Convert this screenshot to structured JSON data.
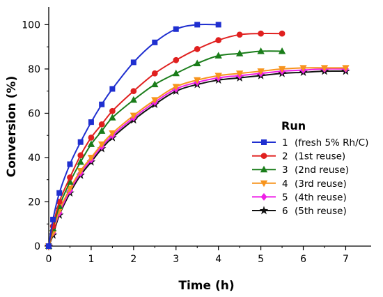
{
  "chart_data": {
    "type": "line",
    "xlabel": "Time (h)",
    "ylabel": "Conversion (%)",
    "xlim": [
      0,
      7.6
    ],
    "ylim": [
      0,
      108
    ],
    "xticks": [
      "0",
      "1",
      "2",
      "3",
      "4",
      "5",
      "6",
      "7"
    ],
    "yticks": [
      "0",
      "20",
      "40",
      "60",
      "80",
      "100"
    ],
    "grid": false,
    "legend": {
      "title": "Run",
      "position": "right-center"
    },
    "series": [
      {
        "name": "1",
        "note": "(fresh 5% Rh/C)",
        "color": "#1f2fd0",
        "marker": "square",
        "x": [
          0,
          0.1,
          0.25,
          0.5,
          0.75,
          1.0,
          1.25,
          1.5,
          2.0,
          2.5,
          3.0,
          3.5,
          4.0
        ],
        "y": [
          0,
          12,
          24,
          37,
          47,
          56,
          64,
          71,
          83,
          92,
          98,
          100,
          100
        ]
      },
      {
        "name": "2",
        "note": "(1st reuse)",
        "color": "#e0201f",
        "marker": "circle",
        "x": [
          0,
          0.1,
          0.25,
          0.5,
          0.75,
          1.0,
          1.25,
          1.5,
          2.0,
          2.5,
          3.0,
          3.5,
          4.0,
          4.5,
          5.0,
          5.5
        ],
        "y": [
          0,
          9,
          20,
          31,
          41,
          49,
          55,
          61,
          70,
          78,
          84,
          89,
          93,
          95.5,
          96,
          96
        ]
      },
      {
        "name": "3",
        "note": "(2nd reuse)",
        "color": "#1a7d1a",
        "marker": "triangle-up",
        "x": [
          0,
          0.1,
          0.25,
          0.5,
          0.75,
          1.0,
          1.25,
          1.5,
          2.0,
          2.5,
          3.0,
          3.5,
          4.0,
          4.5,
          5.0,
          5.5
        ],
        "y": [
          0,
          8,
          18,
          29,
          38,
          46,
          52,
          58,
          66,
          73,
          78,
          82.5,
          86,
          87,
          88,
          88
        ]
      },
      {
        "name": "4",
        "note": "(3rd reuse)",
        "color": "#f7941d",
        "marker": "triangle-down",
        "x": [
          0,
          0.1,
          0.25,
          0.5,
          0.75,
          1.0,
          1.25,
          1.5,
          2.0,
          2.5,
          3.0,
          3.5,
          4.0,
          4.5,
          5.0,
          5.5,
          6.0,
          6.5,
          7.0
        ],
        "y": [
          0,
          6,
          16,
          26,
          34,
          40,
          46,
          51,
          59,
          66,
          72,
          75,
          77,
          78,
          79,
          80,
          80.5,
          80.5,
          80.5
        ]
      },
      {
        "name": "5",
        "note": "(4th reuse)",
        "color": "#ee1fe6",
        "marker": "diamond",
        "x": [
          0,
          0.1,
          0.25,
          0.5,
          0.75,
          1.0,
          1.25,
          1.5,
          2.0,
          2.5,
          3.0,
          3.5,
          4.0,
          4.5,
          5.0,
          5.5,
          6.0,
          6.5,
          7.0
        ],
        "y": [
          0,
          6,
          15,
          25,
          33,
          39,
          45,
          50,
          58,
          65,
          71,
          74,
          76,
          77,
          78,
          79,
          79.5,
          80,
          80
        ]
      },
      {
        "name": "6",
        "note": "(5th reuse)",
        "color": "#111111",
        "marker": "star",
        "x": [
          0,
          0.1,
          0.25,
          0.5,
          0.75,
          1.0,
          1.25,
          1.5,
          2.0,
          2.5,
          3.0,
          3.5,
          4.0,
          4.5,
          5.0,
          5.5,
          6.0,
          6.5,
          7.0
        ],
        "y": [
          0,
          5,
          14,
          24,
          32,
          38,
          44,
          49,
          57,
          64,
          70,
          73,
          75,
          76,
          77,
          78,
          78.5,
          79,
          79
        ]
      }
    ]
  }
}
